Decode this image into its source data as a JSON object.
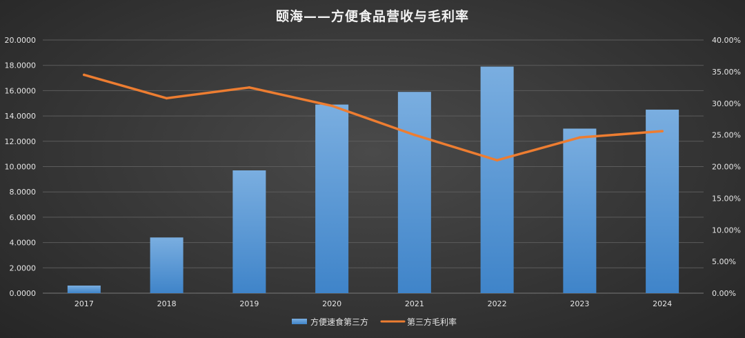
{
  "chart_data": {
    "type": "bar",
    "title": "颐海——方便食品营收与毛利率",
    "categories": [
      "2017",
      "2018",
      "2019",
      "2020",
      "2021",
      "2022",
      "2023",
      "2024"
    ],
    "y_left": {
      "ylim": [
        0,
        20
      ],
      "ticks": [
        "0.0000",
        "2.0000",
        "4.0000",
        "6.0000",
        "8.0000",
        "10.0000",
        "12.0000",
        "14.0000",
        "16.0000",
        "18.0000",
        "20.0000"
      ]
    },
    "y_right": {
      "ylim": [
        0,
        40
      ],
      "ticks": [
        "0.00%",
        "5.00%",
        "10.00%",
        "15.00%",
        "20.00%",
        "25.00%",
        "30.00%",
        "35.00%",
        "40.00%"
      ]
    },
    "grid": true,
    "legend_position": "bottom",
    "series": [
      {
        "name": "方便速食第三方",
        "type": "bar",
        "axis": "left",
        "color": "#5b9bd5",
        "values": [
          0.6,
          4.4,
          9.7,
          14.9,
          15.9,
          17.9,
          13.0,
          14.5
        ]
      },
      {
        "name": "第三方毛利率",
        "type": "line",
        "axis": "right",
        "unit": "%",
        "color": "#ed7d31",
        "values": [
          34.5,
          30.8,
          32.5,
          29.6,
          25.0,
          21.0,
          24.6,
          25.6
        ]
      }
    ]
  }
}
